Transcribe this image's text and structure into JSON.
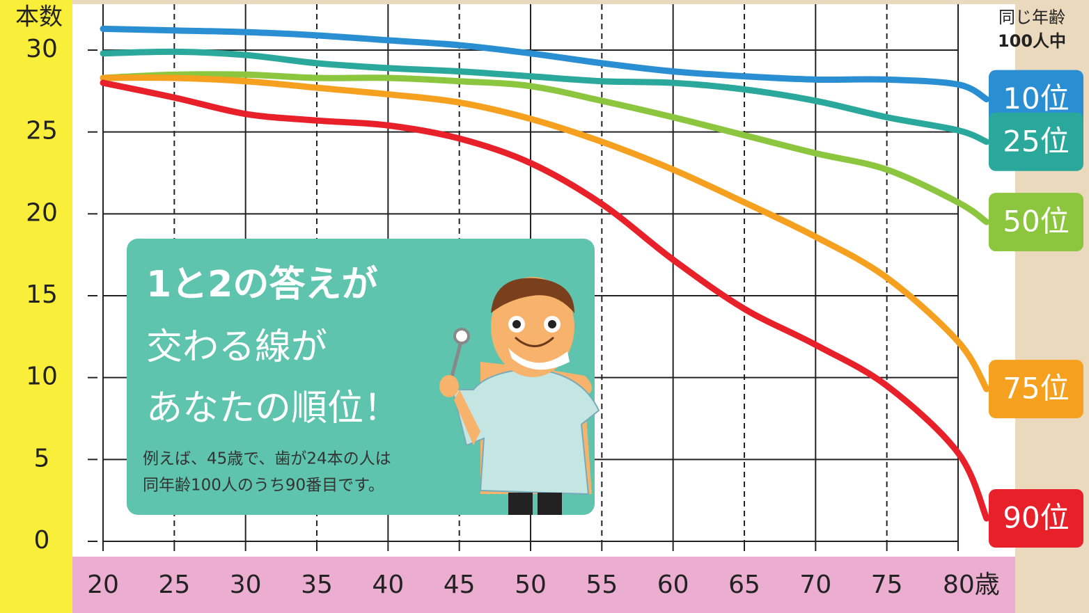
{
  "chart_data": {
    "type": "line",
    "y_axis_label": "本数",
    "legend_header": [
      "同じ年齢",
      "100人中"
    ],
    "x": [
      20,
      25,
      30,
      35,
      40,
      45,
      50,
      55,
      60,
      65,
      70,
      75,
      80,
      82
    ],
    "xlim": [
      20,
      80
    ],
    "xticks": [
      20,
      25,
      30,
      35,
      40,
      45,
      50,
      55,
      60,
      65,
      70,
      75,
      {
        "value": 80,
        "label": "80歳"
      }
    ],
    "ylim": [
      0,
      30
    ],
    "yticks": [
      0,
      5,
      10,
      15,
      20,
      25,
      30
    ],
    "grid": true,
    "legend": "right",
    "series": [
      {
        "name": "10位",
        "color": "#2a8fd2",
        "values": [
          31.3,
          31.2,
          31.1,
          30.9,
          30.6,
          30.3,
          29.8,
          29.2,
          28.7,
          28.4,
          28.2,
          28.2,
          27.9,
          27.0
        ]
      },
      {
        "name": "25位",
        "color": "#2aa89c",
        "values": [
          29.8,
          29.9,
          29.7,
          29.2,
          28.9,
          28.7,
          28.4,
          28.1,
          28.0,
          27.6,
          26.9,
          25.9,
          25.1,
          24.4
        ]
      },
      {
        "name": "50位",
        "color": "#8cc63f",
        "values": [
          28.3,
          28.5,
          28.5,
          28.3,
          28.3,
          28.1,
          27.8,
          26.9,
          25.9,
          24.8,
          23.7,
          22.7,
          20.7,
          19.5
        ]
      },
      {
        "name": "75位",
        "color": "#f5a01e",
        "values": [
          28.3,
          28.3,
          28.1,
          27.7,
          27.3,
          26.8,
          25.8,
          24.4,
          22.7,
          20.7,
          18.6,
          16.1,
          12.2,
          9.3
        ]
      },
      {
        "name": "90位",
        "color": "#e8202a",
        "values": [
          28.0,
          27.1,
          26.1,
          25.7,
          25.4,
          24.6,
          23.1,
          20.6,
          17.2,
          14.2,
          12.0,
          9.5,
          5.4,
          1.4
        ]
      }
    ],
    "annotation": {
      "lines": [
        "1と2の答えが",
        "交わる線が",
        "あなたの順位！"
      ],
      "note": [
        "例えば、45歳で、歯が24本の人は",
        "同年齢100人のうち90番目です。"
      ]
    }
  }
}
